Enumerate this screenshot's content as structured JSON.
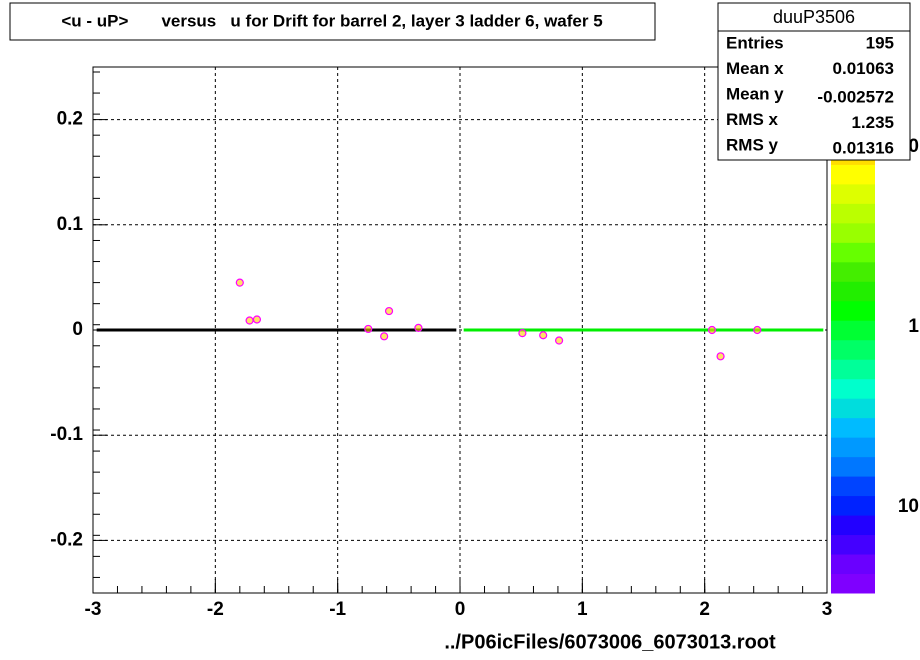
{
  "chart_data": {
    "type": "scatter",
    "title": "<u - uP>       versus   u for Drift for barrel 2, layer 3 ladder 6, wafer 5",
    "xlabel": "../P06icFiles/6073006_6073013.root",
    "xlim": [
      -3,
      3
    ],
    "ylim": [
      -0.25,
      0.25
    ],
    "xticks": [
      -3,
      -2,
      -1,
      0,
      1,
      2,
      3
    ],
    "yticks": [
      -0.2,
      -0.1,
      0,
      0.1,
      0.2
    ],
    "grid": true,
    "series": [
      {
        "color": "#ff00ff",
        "x": [
          -1.8,
          -1.72,
          -1.66,
          -0.75,
          -0.58,
          -0.62,
          -0.34,
          0.51,
          0.68,
          0.81,
          2.06,
          2.13,
          2.43
        ],
        "values": [
          0.045,
          0.009,
          0.01,
          0.001,
          0.018,
          -0.006,
          0.002,
          -0.003,
          -0.005,
          -0.01,
          0.0,
          -0.025,
          0.0
        ]
      }
    ],
    "lines": [
      {
        "color": "#000000",
        "x": [
          -2.97,
          -0.03
        ],
        "values": [
          0,
          0
        ]
      },
      {
        "color": "#00ee00",
        "x": [
          0.03,
          2.97
        ],
        "values": [
          0,
          0
        ]
      }
    ],
    "palette_labels": [
      "0",
      "1",
      "10"
    ],
    "stats": {
      "name": "duuP3506",
      "entries": [
        {
          "label": "Entries",
          "value": 195
        },
        {
          "label": "Mean x",
          "value": 0.01063
        },
        {
          "label": "Mean y",
          "value": -0.002572
        },
        {
          "label": "RMS x",
          "value": 1.235
        },
        {
          "label": "RMS y",
          "value": 0.01316
        }
      ]
    }
  }
}
